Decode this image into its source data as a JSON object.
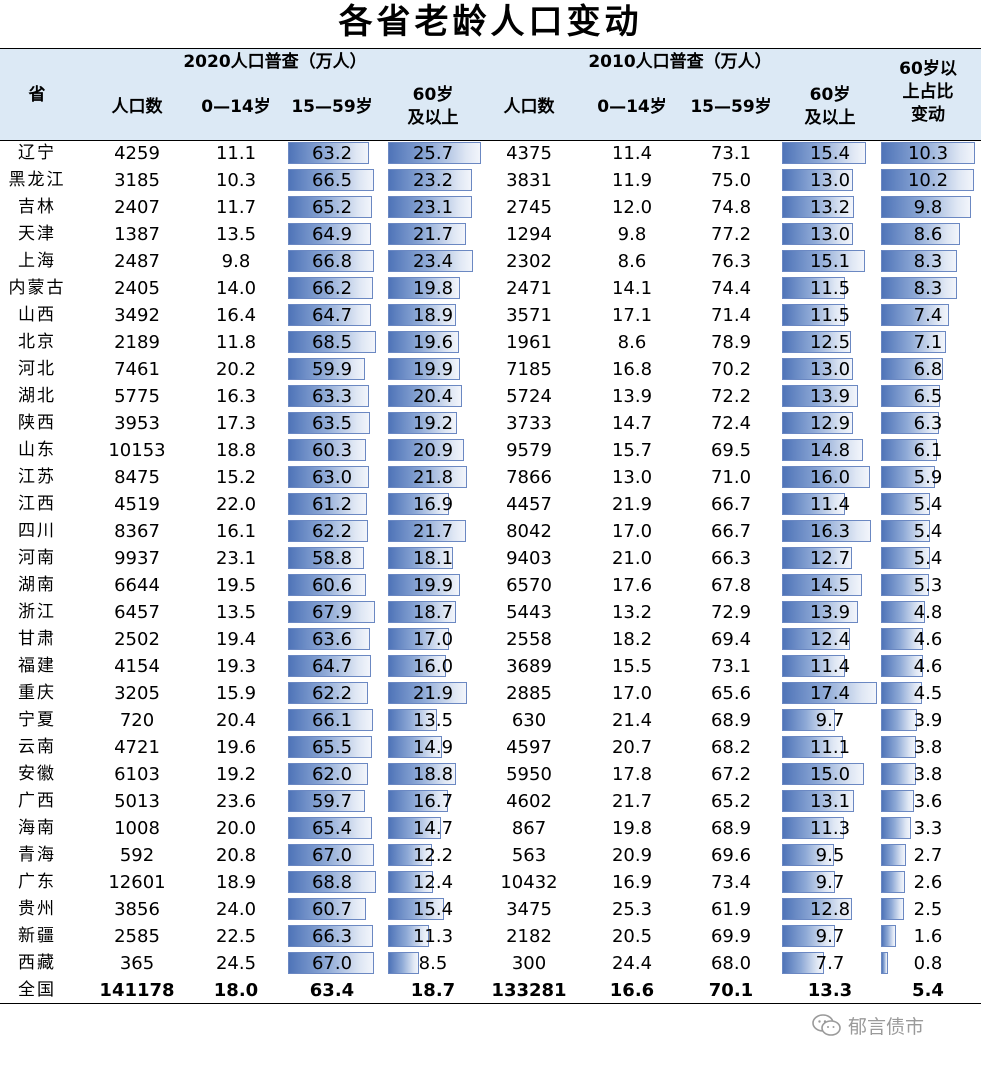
{
  "title": "各省老龄人口变动",
  "watermark": "郁言债市",
  "chart_data": {
    "type": "table",
    "title": "各省老龄人口变动",
    "group_headers": [
      "2020人口普查（万人）",
      "2010人口普查（万人）"
    ],
    "columns": [
      "省",
      "人口数",
      "0—14岁",
      "15—59岁",
      "60岁及以上",
      "人口数",
      "0—14岁",
      "15—59岁",
      "60岁及以上",
      "60岁以上占比变动"
    ],
    "rows": [
      {
        "province": "辽宁",
        "pop2020": "4259",
        "a2020": "11.1",
        "b2020": "63.2",
        "c2020": "25.7",
        "pop2010": "4375",
        "a2010": "11.4",
        "b2010": "73.1",
        "c2010": "15.4",
        "change": "10.3"
      },
      {
        "province": "黑龙江",
        "pop2020": "3185",
        "a2020": "10.3",
        "b2020": "66.5",
        "c2020": "23.2",
        "pop2010": "3831",
        "a2010": "11.9",
        "b2010": "75.0",
        "c2010": "13.0",
        "change": "10.2"
      },
      {
        "province": "吉林",
        "pop2020": "2407",
        "a2020": "11.7",
        "b2020": "65.2",
        "c2020": "23.1",
        "pop2010": "2745",
        "a2010": "12.0",
        "b2010": "74.8",
        "c2010": "13.2",
        "change": "9.8"
      },
      {
        "province": "天津",
        "pop2020": "1387",
        "a2020": "13.5",
        "b2020": "64.9",
        "c2020": "21.7",
        "pop2010": "1294",
        "a2010": "9.8",
        "b2010": "77.2",
        "c2010": "13.0",
        "change": "8.6"
      },
      {
        "province": "上海",
        "pop2020": "2487",
        "a2020": "9.8",
        "b2020": "66.8",
        "c2020": "23.4",
        "pop2010": "2302",
        "a2010": "8.6",
        "b2010": "76.3",
        "c2010": "15.1",
        "change": "8.3"
      },
      {
        "province": "内蒙古",
        "pop2020": "2405",
        "a2020": "14.0",
        "b2020": "66.2",
        "c2020": "19.8",
        "pop2010": "2471",
        "a2010": "14.1",
        "b2010": "74.4",
        "c2010": "11.5",
        "change": "8.3"
      },
      {
        "province": "山西",
        "pop2020": "3492",
        "a2020": "16.4",
        "b2020": "64.7",
        "c2020": "18.9",
        "pop2010": "3571",
        "a2010": "17.1",
        "b2010": "71.4",
        "c2010": "11.5",
        "change": "7.4"
      },
      {
        "province": "北京",
        "pop2020": "2189",
        "a2020": "11.8",
        "b2020": "68.5",
        "c2020": "19.6",
        "pop2010": "1961",
        "a2010": "8.6",
        "b2010": "78.9",
        "c2010": "12.5",
        "change": "7.1"
      },
      {
        "province": "河北",
        "pop2020": "7461",
        "a2020": "20.2",
        "b2020": "59.9",
        "c2020": "19.9",
        "pop2010": "7185",
        "a2010": "16.8",
        "b2010": "70.2",
        "c2010": "13.0",
        "change": "6.8"
      },
      {
        "province": "湖北",
        "pop2020": "5775",
        "a2020": "16.3",
        "b2020": "63.3",
        "c2020": "20.4",
        "pop2010": "5724",
        "a2010": "13.9",
        "b2010": "72.2",
        "c2010": "13.9",
        "change": "6.5"
      },
      {
        "province": "陕西",
        "pop2020": "3953",
        "a2020": "17.3",
        "b2020": "63.5",
        "c2020": "19.2",
        "pop2010": "3733",
        "a2010": "14.7",
        "b2010": "72.4",
        "c2010": "12.9",
        "change": "6.3"
      },
      {
        "province": "山东",
        "pop2020": "10153",
        "a2020": "18.8",
        "b2020": "60.3",
        "c2020": "20.9",
        "pop2010": "9579",
        "a2010": "15.7",
        "b2010": "69.5",
        "c2010": "14.8",
        "change": "6.1"
      },
      {
        "province": "江苏",
        "pop2020": "8475",
        "a2020": "15.2",
        "b2020": "63.0",
        "c2020": "21.8",
        "pop2010": "7866",
        "a2010": "13.0",
        "b2010": "71.0",
        "c2010": "16.0",
        "change": "5.9"
      },
      {
        "province": "江西",
        "pop2020": "4519",
        "a2020": "22.0",
        "b2020": "61.2",
        "c2020": "16.9",
        "pop2010": "4457",
        "a2010": "21.9",
        "b2010": "66.7",
        "c2010": "11.4",
        "change": "5.4"
      },
      {
        "province": "四川",
        "pop2020": "8367",
        "a2020": "16.1",
        "b2020": "62.2",
        "c2020": "21.7",
        "pop2010": "8042",
        "a2010": "17.0",
        "b2010": "66.7",
        "c2010": "16.3",
        "change": "5.4"
      },
      {
        "province": "河南",
        "pop2020": "9937",
        "a2020": "23.1",
        "b2020": "58.8",
        "c2020": "18.1",
        "pop2010": "9403",
        "a2010": "21.0",
        "b2010": "66.3",
        "c2010": "12.7",
        "change": "5.4"
      },
      {
        "province": "湖南",
        "pop2020": "6644",
        "a2020": "19.5",
        "b2020": "60.6",
        "c2020": "19.9",
        "pop2010": "6570",
        "a2010": "17.6",
        "b2010": "67.8",
        "c2010": "14.5",
        "change": "5.3"
      },
      {
        "province": "浙江",
        "pop2020": "6457",
        "a2020": "13.5",
        "b2020": "67.9",
        "c2020": "18.7",
        "pop2010": "5443",
        "a2010": "13.2",
        "b2010": "72.9",
        "c2010": "13.9",
        "change": "4.8"
      },
      {
        "province": "甘肃",
        "pop2020": "2502",
        "a2020": "19.4",
        "b2020": "63.6",
        "c2020": "17.0",
        "pop2010": "2558",
        "a2010": "18.2",
        "b2010": "69.4",
        "c2010": "12.4",
        "change": "4.6"
      },
      {
        "province": "福建",
        "pop2020": "4154",
        "a2020": "19.3",
        "b2020": "64.7",
        "c2020": "16.0",
        "pop2010": "3689",
        "a2010": "15.5",
        "b2010": "73.1",
        "c2010": "11.4",
        "change": "4.6"
      },
      {
        "province": "重庆",
        "pop2020": "3205",
        "a2020": "15.9",
        "b2020": "62.2",
        "c2020": "21.9",
        "pop2010": "2885",
        "a2010": "17.0",
        "b2010": "65.6",
        "c2010": "17.4",
        "change": "4.5"
      },
      {
        "province": "宁夏",
        "pop2020": "720",
        "a2020": "20.4",
        "b2020": "66.1",
        "c2020": "13.5",
        "pop2010": "630",
        "a2010": "21.4",
        "b2010": "68.9",
        "c2010": "9.7",
        "change": "3.9"
      },
      {
        "province": "云南",
        "pop2020": "4721",
        "a2020": "19.6",
        "b2020": "65.5",
        "c2020": "14.9",
        "pop2010": "4597",
        "a2010": "20.7",
        "b2010": "68.2",
        "c2010": "11.1",
        "change": "3.8"
      },
      {
        "province": "安徽",
        "pop2020": "6103",
        "a2020": "19.2",
        "b2020": "62.0",
        "c2020": "18.8",
        "pop2010": "5950",
        "a2010": "17.8",
        "b2010": "67.2",
        "c2010": "15.0",
        "change": "3.8"
      },
      {
        "province": "广西",
        "pop2020": "5013",
        "a2020": "23.6",
        "b2020": "59.7",
        "c2020": "16.7",
        "pop2010": "4602",
        "a2010": "21.7",
        "b2010": "65.2",
        "c2010": "13.1",
        "change": "3.6"
      },
      {
        "province": "海南",
        "pop2020": "1008",
        "a2020": "20.0",
        "b2020": "65.4",
        "c2020": "14.7",
        "pop2010": "867",
        "a2010": "19.8",
        "b2010": "68.9",
        "c2010": "11.3",
        "change": "3.3"
      },
      {
        "province": "青海",
        "pop2020": "592",
        "a2020": "20.8",
        "b2020": "67.0",
        "c2020": "12.2",
        "pop2010": "563",
        "a2010": "20.9",
        "b2010": "69.6",
        "c2010": "9.5",
        "change": "2.7"
      },
      {
        "province": "广东",
        "pop2020": "12601",
        "a2020": "18.9",
        "b2020": "68.8",
        "c2020": "12.4",
        "pop2010": "10432",
        "a2010": "16.9",
        "b2010": "73.4",
        "c2010": "9.7",
        "change": "2.6"
      },
      {
        "province": "贵州",
        "pop2020": "3856",
        "a2020": "24.0",
        "b2020": "60.7",
        "c2020": "15.4",
        "pop2010": "3475",
        "a2010": "25.3",
        "b2010": "61.9",
        "c2010": "12.8",
        "change": "2.5"
      },
      {
        "province": "新疆",
        "pop2020": "2585",
        "a2020": "22.5",
        "b2020": "66.3",
        "c2020": "11.3",
        "pop2010": "2182",
        "a2010": "20.5",
        "b2010": "69.9",
        "c2010": "9.7",
        "change": "1.6"
      },
      {
        "province": "西藏",
        "pop2020": "365",
        "a2020": "24.5",
        "b2020": "67.0",
        "c2020": "8.5",
        "pop2010": "300",
        "a2010": "24.4",
        "b2010": "68.0",
        "c2010": "7.7",
        "change": "0.8"
      }
    ],
    "total": {
      "province": "全国",
      "pop2020": "141178",
      "a2020": "18.0",
      "b2020": "63.4",
      "c2020": "18.7",
      "pop2010": "133281",
      "a2010": "16.6",
      "b2010": "70.1",
      "c2010": "13.3",
      "change": "5.4"
    }
  }
}
